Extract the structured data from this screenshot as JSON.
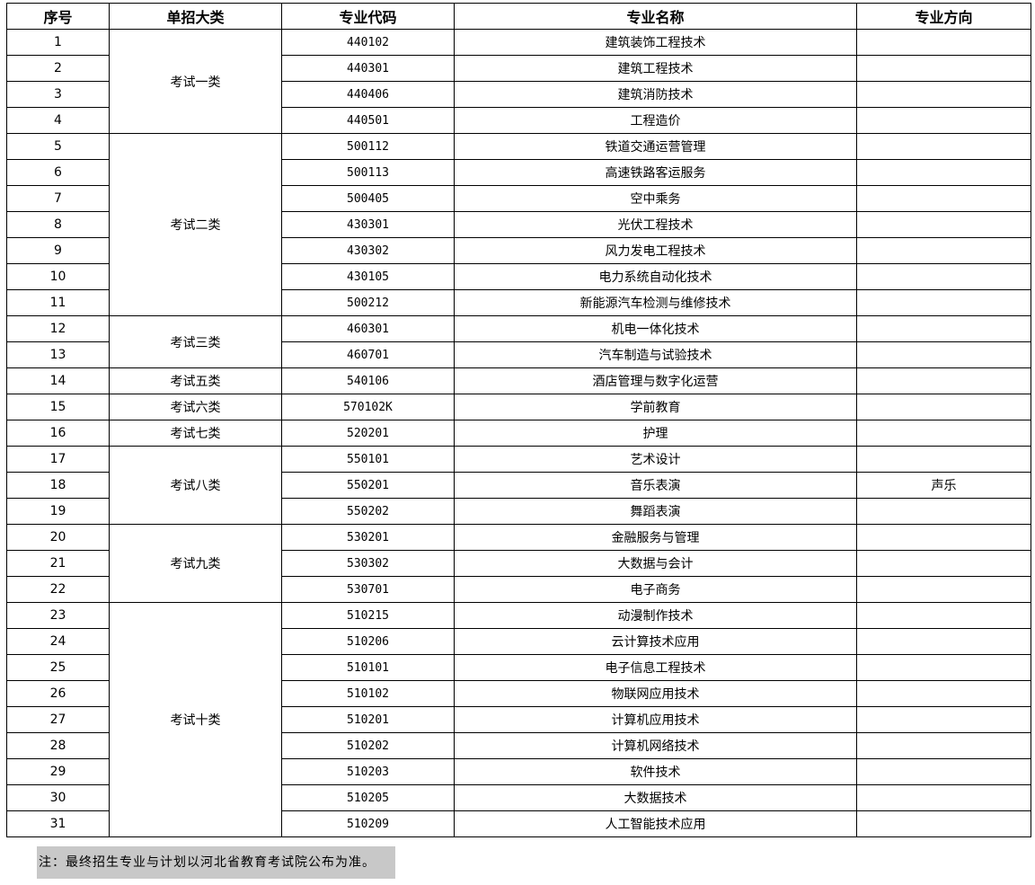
{
  "headers": [
    "序号",
    "单招大类",
    "专业代码",
    "专业名称",
    "专业方向"
  ],
  "groups": [
    {
      "category": "考试一类",
      "rows": [
        {
          "no": "1",
          "code": "440102",
          "name": "建筑装饰工程技术",
          "direction": ""
        },
        {
          "no": "2",
          "code": "440301",
          "name": "建筑工程技术",
          "direction": ""
        },
        {
          "no": "3",
          "code": "440406",
          "name": "建筑消防技术",
          "direction": ""
        },
        {
          "no": "4",
          "code": "440501",
          "name": "工程造价",
          "direction": ""
        }
      ]
    },
    {
      "category": "考试二类",
      "rows": [
        {
          "no": "5",
          "code": "500112",
          "name": "铁道交通运营管理",
          "direction": ""
        },
        {
          "no": "6",
          "code": "500113",
          "name": "高速铁路客运服务",
          "direction": ""
        },
        {
          "no": "7",
          "code": "500405",
          "name": "空中乘务",
          "direction": ""
        },
        {
          "no": "8",
          "code": "430301",
          "name": "光伏工程技术",
          "direction": ""
        },
        {
          "no": "9",
          "code": "430302",
          "name": "风力发电工程技术",
          "direction": ""
        },
        {
          "no": "10",
          "code": "430105",
          "name": "电力系统自动化技术",
          "direction": ""
        },
        {
          "no": "11",
          "code": "500212",
          "name": "新能源汽车检测与维修技术",
          "direction": ""
        }
      ]
    },
    {
      "category": "考试三类",
      "rows": [
        {
          "no": "12",
          "code": "460301",
          "name": "机电一体化技术",
          "direction": ""
        },
        {
          "no": "13",
          "code": "460701",
          "name": "汽车制造与试验技术",
          "direction": ""
        }
      ]
    },
    {
      "category": "考试五类",
      "rows": [
        {
          "no": "14",
          "code": "540106",
          "name": "酒店管理与数字化运营",
          "direction": ""
        }
      ]
    },
    {
      "category": "考试六类",
      "rows": [
        {
          "no": "15",
          "code": "570102K",
          "name": "学前教育",
          "direction": ""
        }
      ]
    },
    {
      "category": "考试七类",
      "rows": [
        {
          "no": "16",
          "code": "520201",
          "name": "护理",
          "direction": ""
        }
      ]
    },
    {
      "category": "考试八类",
      "rows": [
        {
          "no": "17",
          "code": "550101",
          "name": "艺术设计",
          "direction": ""
        },
        {
          "no": "18",
          "code": "550201",
          "name": "音乐表演",
          "direction": "声乐"
        },
        {
          "no": "19",
          "code": "550202",
          "name": "舞蹈表演",
          "direction": ""
        }
      ]
    },
    {
      "category": "考试九类",
      "rows": [
        {
          "no": "20",
          "code": "530201",
          "name": "金融服务与管理",
          "direction": ""
        },
        {
          "no": "21",
          "code": "530302",
          "name": "大数据与会计",
          "direction": ""
        },
        {
          "no": "22",
          "code": "530701",
          "name": "电子商务",
          "direction": ""
        }
      ]
    },
    {
      "category": "考试十类",
      "rows": [
        {
          "no": "23",
          "code": "510215",
          "name": "动漫制作技术",
          "direction": ""
        },
        {
          "no": "24",
          "code": "510206",
          "name": "云计算技术应用",
          "direction": ""
        },
        {
          "no": "25",
          "code": "510101",
          "name": "电子信息工程技术",
          "direction": ""
        },
        {
          "no": "26",
          "code": "510102",
          "name": "物联网应用技术",
          "direction": ""
        },
        {
          "no": "27",
          "code": "510201",
          "name": "计算机应用技术",
          "direction": ""
        },
        {
          "no": "28",
          "code": "510202",
          "name": "计算机网络技术",
          "direction": ""
        },
        {
          "no": "29",
          "code": "510203",
          "name": "软件技术",
          "direction": ""
        },
        {
          "no": "30",
          "code": "510205",
          "name": "大数据技术",
          "direction": ""
        },
        {
          "no": "31",
          "code": "510209",
          "name": "人工智能技术应用",
          "direction": ""
        }
      ]
    }
  ],
  "note": "注：最终招生专业与计划以河北省教育考试院公布为准。"
}
